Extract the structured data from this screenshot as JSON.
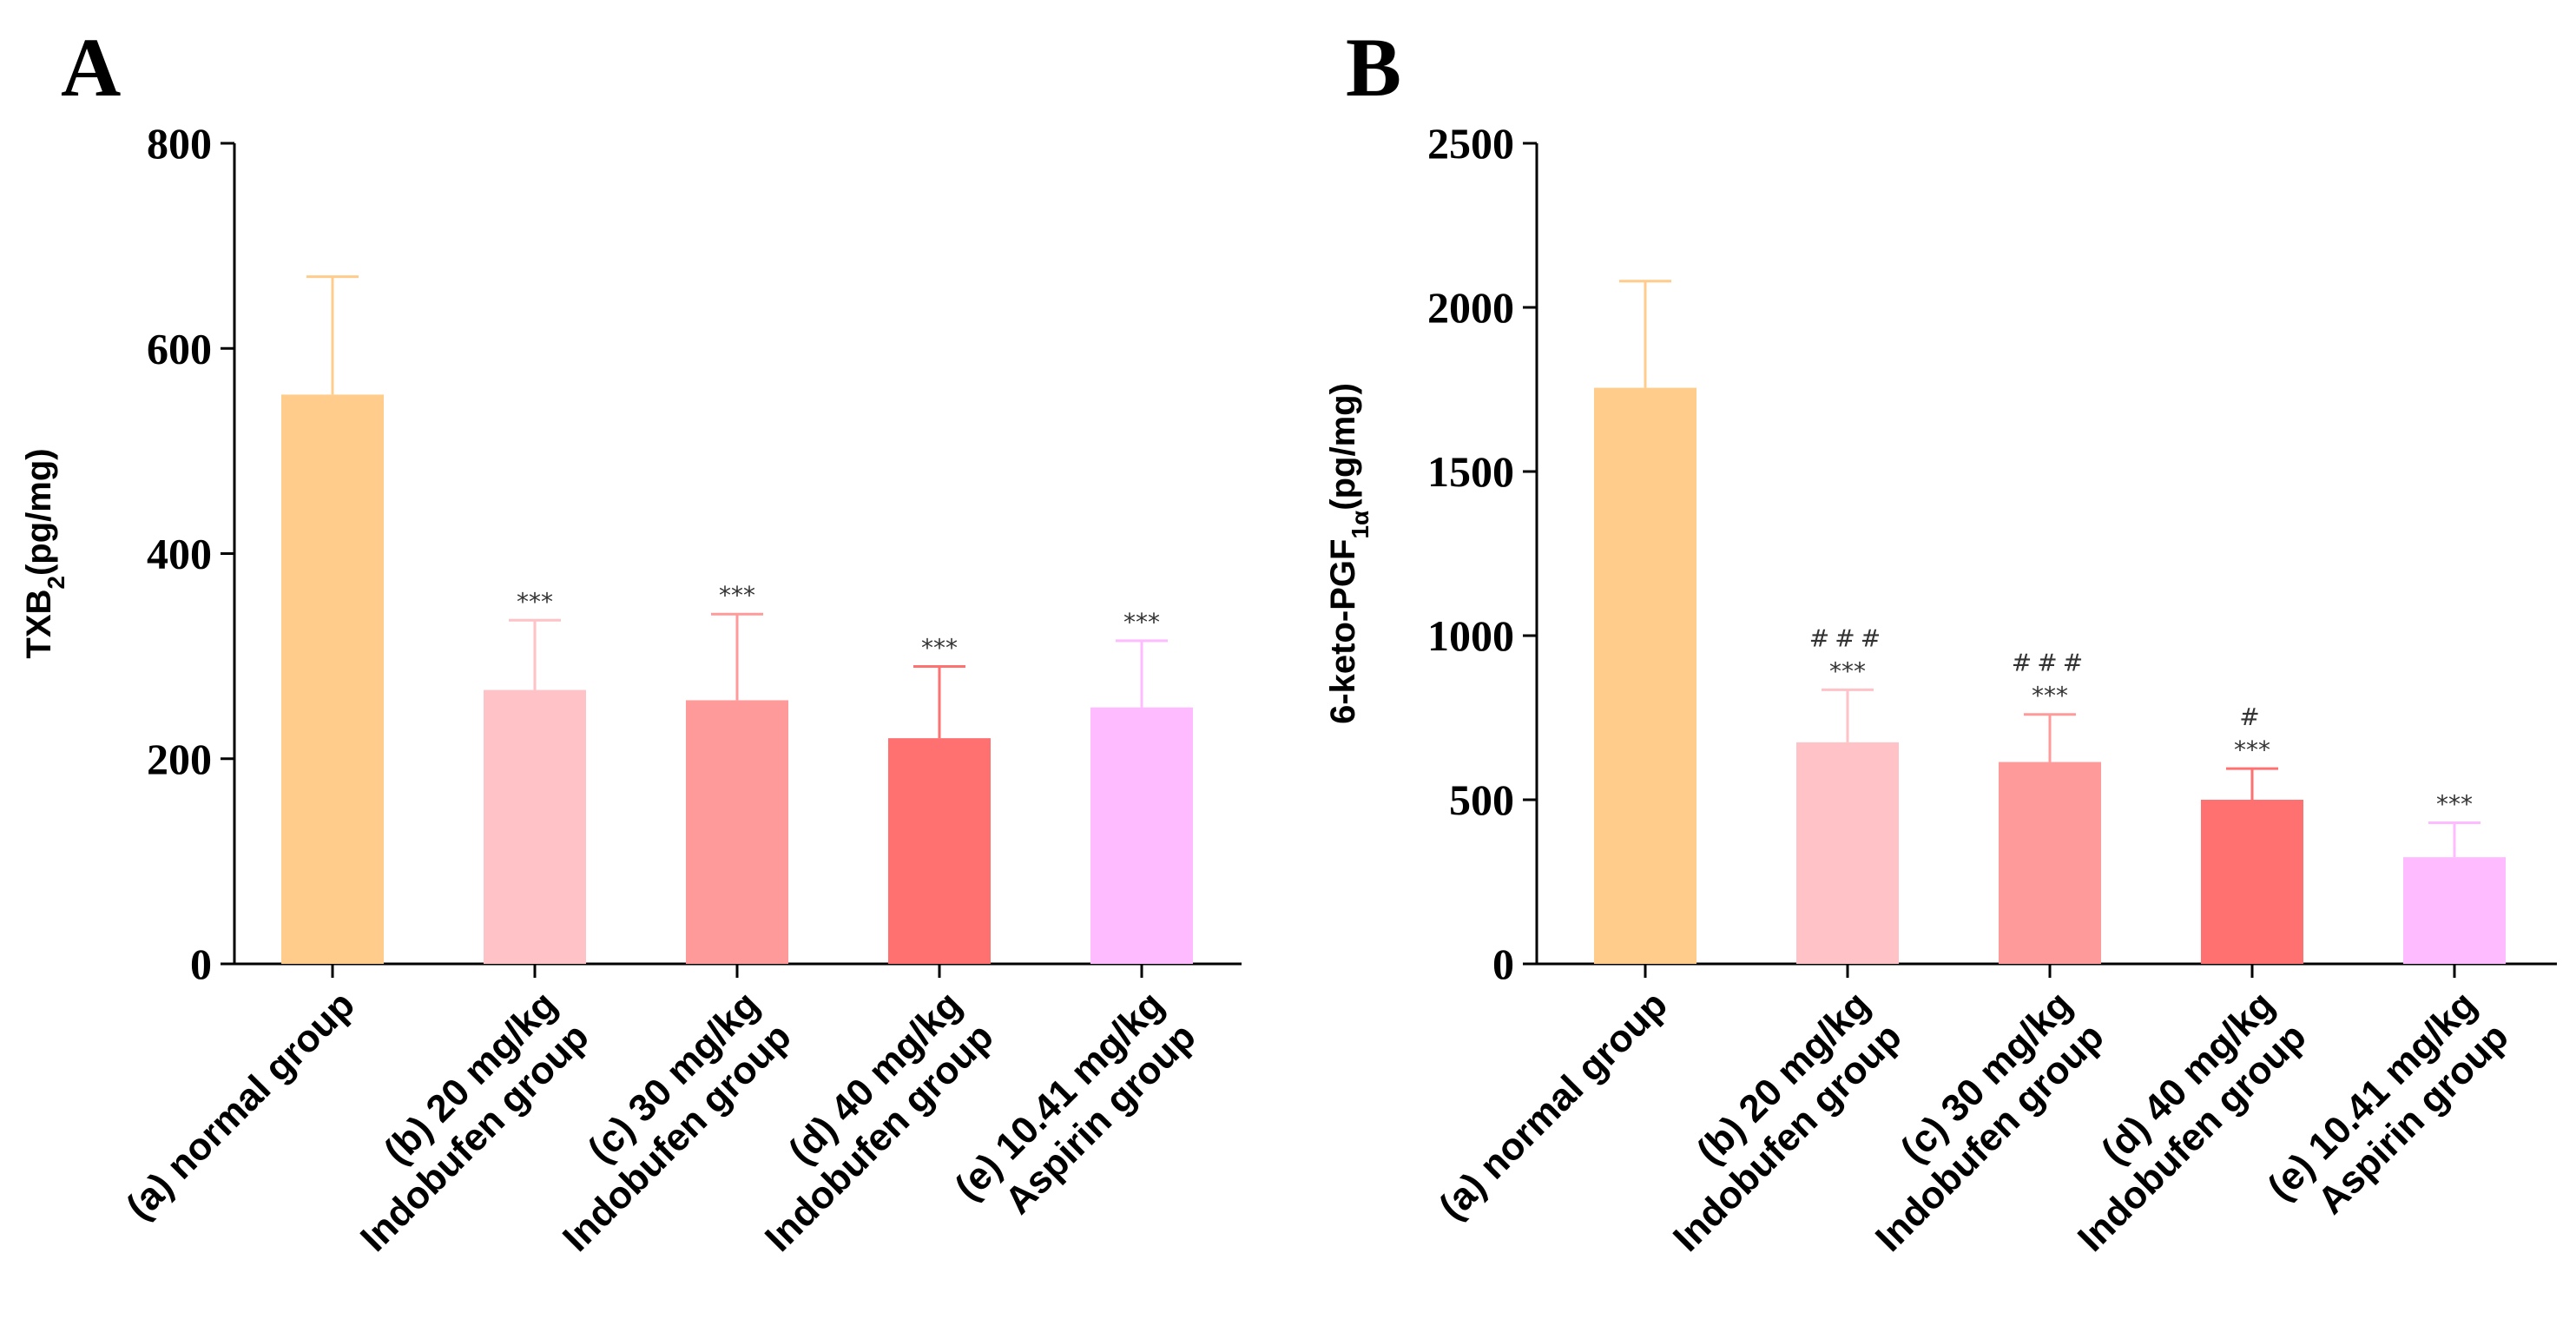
{
  "chart_data": [
    {
      "type": "bar",
      "panel": "A",
      "ylabel_main": "TXB",
      "ylabel_sub": "2",
      "ylabel_tail": "(pg/mg)",
      "ylim": [
        0,
        800
      ],
      "yticks": [
        "0",
        "200",
        "400",
        "600",
        "800"
      ],
      "categories": [
        [
          "(a)  normal group"
        ],
        [
          "(b)  20 mg/kg",
          "Indobufen group"
        ],
        [
          "(c)  30 mg/kg",
          "Indobufen group"
        ],
        [
          "(d)  40 mg/kg",
          "Indobufen group"
        ],
        [
          "(e)  10.41 mg/kg",
          "Aspirin group"
        ]
      ],
      "values": [
        555,
        267,
        257,
        220,
        250
      ],
      "errors": [
        115,
        68,
        84,
        70,
        65
      ],
      "colors": [
        "#FFCC8C",
        "#FFC2C6",
        "#FF9A9A",
        "#FF7070",
        "#FFBBFF"
      ],
      "annotations": [
        [],
        [
          "***"
        ],
        [
          "***"
        ],
        [
          "***"
        ],
        [
          "***"
        ]
      ]
    },
    {
      "type": "bar",
      "panel": "B",
      "ylabel_main": "6-keto-PGF",
      "ylabel_sub": "1α",
      "ylabel_tail": "(pg/mg)",
      "ylim": [
        0,
        2500
      ],
      "yticks": [
        "0",
        "500",
        "1000",
        "1500",
        "2000",
        "2500"
      ],
      "categories": [
        [
          "(a)  normal group"
        ],
        [
          "(b)  20 mg/kg",
          "Indobufen group"
        ],
        [
          "(c)  30 mg/kg",
          "Indobufen group"
        ],
        [
          "(d)  40 mg/kg",
          "Indobufen group"
        ],
        [
          "(e)  10.41 mg/kg",
          "Aspirin group"
        ]
      ],
      "values": [
        1755,
        675,
        615,
        500,
        325
      ],
      "errors": [
        325,
        160,
        145,
        95,
        105
      ],
      "colors": [
        "#FFCC8C",
        "#FFC2C6",
        "#FF9A9A",
        "#FF7070",
        "#FFBBFF"
      ],
      "annotations": [
        [],
        [
          "###",
          "***"
        ],
        [
          "###",
          "***"
        ],
        [
          "#",
          "***"
        ],
        [
          "***"
        ]
      ]
    }
  ]
}
